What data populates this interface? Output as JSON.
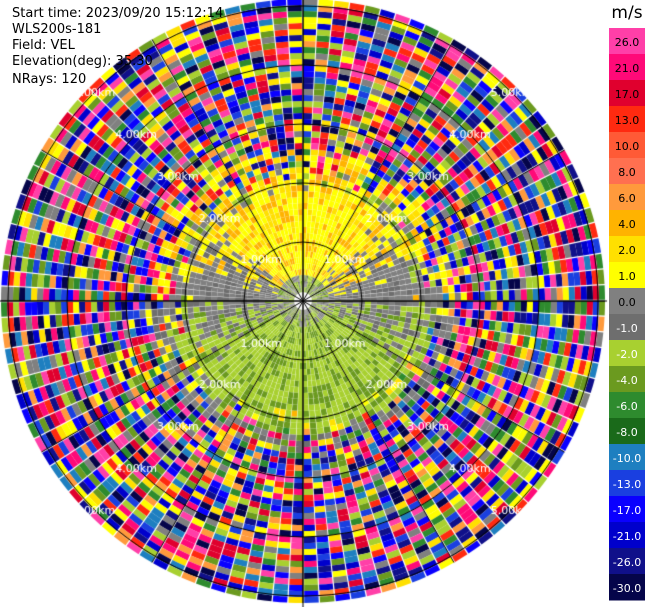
{
  "info": {
    "start_time": "Start time: 2023/09/20 15:12:14",
    "instrument": "WLS200s-181",
    "field": "Field: VEL",
    "elevation": "Elevation(deg): 35.30",
    "nrays": "NRays: 120"
  },
  "chart_data": {
    "type": "heatmap",
    "subtype": "polar-ppi",
    "field": "VEL",
    "n_rays": 120,
    "range_rings_km": [
      1.0,
      2.0,
      3.0,
      4.0,
      5.0
    ],
    "ring_labels": [
      "1.00km",
      "2.00km",
      "3.00km",
      "4.00km",
      "5.00km"
    ],
    "colorbar": {
      "unit": "m/s",
      "tick_labels": [
        "26.0",
        "21.0",
        "17.0",
        "13.0",
        "10.0",
        "8.0",
        "6.0",
        "4.0",
        "2.0",
        "1.0",
        "0.0",
        "-1.0",
        "-2.0",
        "-4.0",
        "-6.0",
        "-8.0",
        "-10.0",
        "-13.0",
        "-17.0",
        "-21.0",
        "-26.0",
        "-30.0"
      ],
      "colors": [
        "#ff3fa8",
        "#ff0a78",
        "#e0002e",
        "#ff2a10",
        "#ff5a36",
        "#ff7050",
        "#ff9a3c",
        "#ffb300",
        "#ffe000",
        "#ffff00",
        "#808080",
        "#6e6e6e",
        "#a8d030",
        "#6b9a1f",
        "#2e8b2e",
        "#1a6a1a",
        "#1e7fc0",
        "#1a3fe0",
        "#0a00ff",
        "#0000cc",
        "#10108a",
        "#05054a"
      ]
    }
  }
}
